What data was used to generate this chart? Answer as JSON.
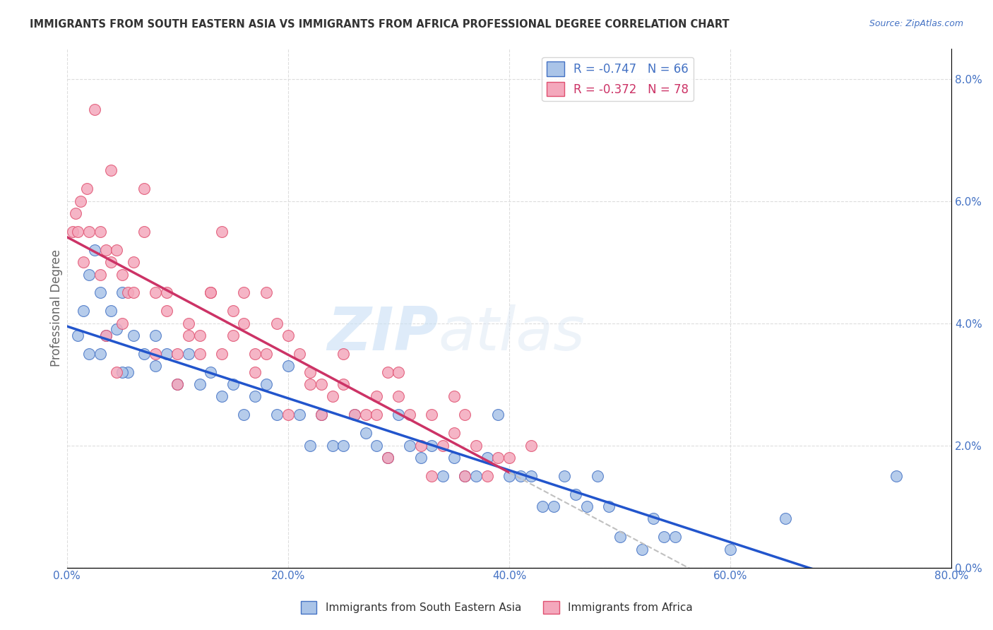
{
  "title": "IMMIGRANTS FROM SOUTH EASTERN ASIA VS IMMIGRANTS FROM AFRICA PROFESSIONAL DEGREE CORRELATION CHART",
  "source": "Source: ZipAtlas.com",
  "ylabel": "Professional Degree",
  "right_yticks": [
    "0.0%",
    "2.0%",
    "4.0%",
    "6.0%",
    "8.0%"
  ],
  "right_ytick_vals": [
    0.0,
    2.0,
    4.0,
    6.0,
    8.0
  ],
  "legend_entry1": "R = -0.747   N = 66",
  "legend_entry2": "R = -0.372   N = 78",
  "legend_label1": "Immigrants from South Eastern Asia",
  "legend_label2": "Immigrants from Africa",
  "color_blue_face": "#aac4e8",
  "color_pink_face": "#f4a8bc",
  "color_blue_edge": "#4472c4",
  "color_pink_edge": "#e05070",
  "color_blue_line": "#2255cc",
  "color_pink_line": "#cc3366",
  "color_dashed": "#c0c0c0",
  "watermark_zip": "ZIP",
  "watermark_atlas": "atlas",
  "blue_scatter_x": [
    1.0,
    1.5,
    2.0,
    2.0,
    2.5,
    3.0,
    3.5,
    4.0,
    4.5,
    5.0,
    5.5,
    6.0,
    7.0,
    8.0,
    9.0,
    10.0,
    11.0,
    12.0,
    13.0,
    14.0,
    15.0,
    16.0,
    17.0,
    18.0,
    19.0,
    20.0,
    21.0,
    22.0,
    23.0,
    24.0,
    25.0,
    26.0,
    27.0,
    28.0,
    29.0,
    30.0,
    31.0,
    32.0,
    33.0,
    34.0,
    35.0,
    36.0,
    37.0,
    38.0,
    39.0,
    40.0,
    41.0,
    42.0,
    43.0,
    44.0,
    45.0,
    46.0,
    47.0,
    48.0,
    49.0,
    50.0,
    52.0,
    53.0,
    54.0,
    55.0,
    60.0,
    65.0,
    75.0,
    3.0,
    5.0,
    8.0
  ],
  "blue_scatter_y": [
    3.8,
    4.2,
    4.8,
    3.5,
    5.2,
    4.5,
    3.8,
    4.2,
    3.9,
    4.5,
    3.2,
    3.8,
    3.5,
    3.3,
    3.5,
    3.0,
    3.5,
    3.0,
    3.2,
    2.8,
    3.0,
    2.5,
    2.8,
    3.0,
    2.5,
    3.3,
    2.5,
    2.0,
    2.5,
    2.0,
    2.0,
    2.5,
    2.2,
    2.0,
    1.8,
    2.5,
    2.0,
    1.8,
    2.0,
    1.5,
    1.8,
    1.5,
    1.5,
    1.8,
    2.5,
    1.5,
    1.5,
    1.5,
    1.0,
    1.0,
    1.5,
    1.2,
    1.0,
    1.5,
    1.0,
    0.5,
    0.3,
    0.8,
    0.5,
    0.5,
    0.3,
    0.8,
    1.5,
    3.5,
    3.2,
    3.8
  ],
  "pink_scatter_x": [
    0.5,
    0.8,
    1.0,
    1.2,
    1.5,
    1.8,
    2.0,
    2.5,
    3.0,
    3.5,
    4.0,
    4.5,
    5.0,
    5.5,
    6.0,
    7.0,
    8.0,
    9.0,
    10.0,
    11.0,
    12.0,
    13.0,
    14.0,
    15.0,
    16.0,
    17.0,
    18.0,
    19.0,
    20.0,
    21.0,
    22.0,
    23.0,
    24.0,
    25.0,
    26.0,
    27.0,
    28.0,
    29.0,
    30.0,
    31.0,
    32.0,
    33.0,
    34.0,
    35.0,
    36.0,
    37.0,
    38.0,
    39.0,
    40.0,
    42.0,
    3.0,
    5.0,
    7.0,
    8.0,
    10.0,
    12.0,
    14.0,
    16.0,
    18.0,
    20.0,
    22.0,
    25.0,
    28.0,
    30.0,
    33.0,
    35.0,
    4.0,
    6.0,
    9.0,
    11.0,
    15.0,
    17.0,
    23.0,
    29.0,
    36.0,
    3.5,
    4.5,
    13.0
  ],
  "pink_scatter_y": [
    5.5,
    5.8,
    5.5,
    6.0,
    5.0,
    6.2,
    5.5,
    7.5,
    5.5,
    5.2,
    6.5,
    5.2,
    4.8,
    4.5,
    5.0,
    5.5,
    4.5,
    4.2,
    3.5,
    4.0,
    3.8,
    4.5,
    3.5,
    3.8,
    4.0,
    3.2,
    3.5,
    4.0,
    3.8,
    3.5,
    3.2,
    3.0,
    2.8,
    3.0,
    2.5,
    2.5,
    2.5,
    3.2,
    2.8,
    2.5,
    2.0,
    2.5,
    2.0,
    2.2,
    2.5,
    2.0,
    1.5,
    1.8,
    1.8,
    2.0,
    4.8,
    4.0,
    6.2,
    3.5,
    3.0,
    3.5,
    5.5,
    4.5,
    4.5,
    2.5,
    3.0,
    3.5,
    2.8,
    3.2,
    1.5,
    2.8,
    5.0,
    4.5,
    4.5,
    3.8,
    4.2,
    3.5,
    2.5,
    1.8,
    1.5,
    3.8,
    3.2,
    4.5
  ],
  "xlim": [
    0,
    80
  ],
  "ylim": [
    0,
    8.5
  ],
  "xticklabels": [
    "0.0%",
    "20.0%",
    "40.0%",
    "60.0%",
    "80.0%"
  ],
  "xtick_vals": [
    0,
    20,
    40,
    60,
    80
  ]
}
